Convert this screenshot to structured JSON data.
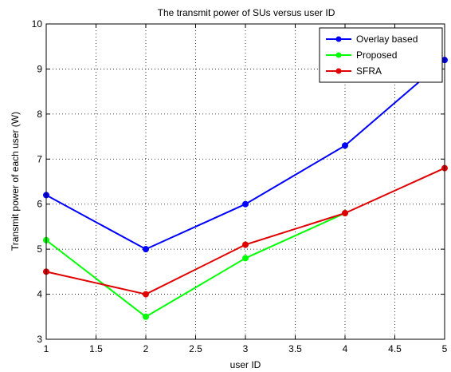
{
  "chart_data": {
    "type": "line",
    "title": "The transmit power of SUs versus user ID",
    "xlabel": "user ID",
    "ylabel": "Transmit power of each user (W)",
    "x": [
      1,
      2,
      3,
      4,
      5
    ],
    "xlim": [
      1,
      5
    ],
    "ylim": [
      3,
      10
    ],
    "xticks": [
      "1",
      "1.5",
      "2",
      "2.5",
      "3",
      "3.5",
      "4",
      "4.5",
      "5"
    ],
    "yticks": [
      "3",
      "4",
      "5",
      "6",
      "7",
      "8",
      "9",
      "10"
    ],
    "grid": true,
    "legend_position": "top-right",
    "series": [
      {
        "name": "Overlay based",
        "color": "#0000ff",
        "values": [
          6.2,
          5.0,
          6.0,
          7.3,
          9.2
        ]
      },
      {
        "name": "Proposed",
        "color": "#00ff00",
        "values": [
          5.2,
          3.5,
          4.8,
          5.8,
          null
        ]
      },
      {
        "name": "SFRA",
        "color": "#e00000",
        "values": [
          4.5,
          4.0,
          5.1,
          5.8,
          6.8
        ]
      }
    ]
  }
}
